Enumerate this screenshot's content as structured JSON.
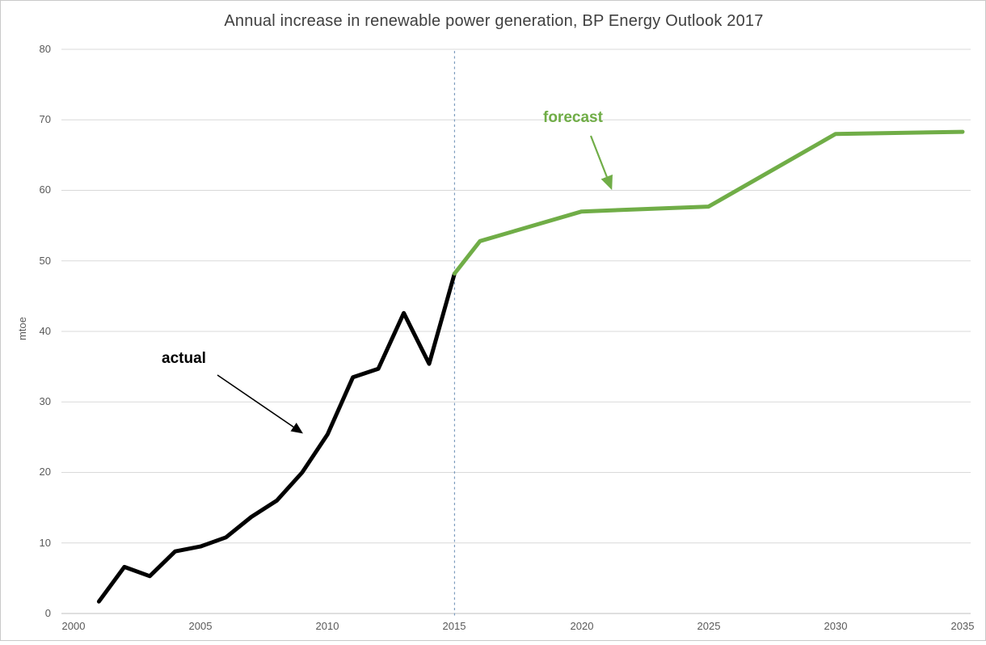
{
  "chart_data": {
    "type": "line",
    "title": "Annual increase in renewable power generation, BP Energy Outlook 2017",
    "xlabel": "",
    "ylabel": "mtoe",
    "xlim": [
      2000,
      2035
    ],
    "ylim": [
      0,
      80
    ],
    "x_tick_step": 5,
    "y_tick_step": 10,
    "x_tick_labels": [
      "2000",
      "2005",
      "2010",
      "2015",
      "2020",
      "2025",
      "2030",
      "2035"
    ],
    "y_tick_labels": [
      "0",
      "10",
      "20",
      "30",
      "40",
      "50",
      "60",
      "70",
      "80"
    ],
    "grid": "horizontal-only",
    "legend": "none",
    "gridline_color": "#D9D9D9",
    "axis_line_color": "#BFBFBF",
    "divider": {
      "x": 2015,
      "style": "dashed",
      "color": "#7E9DBE"
    },
    "series": [
      {
        "name": "actual",
        "color": "#000000",
        "x": [
          2001,
          2002,
          2003,
          2004,
          2005,
          2006,
          2007,
          2008,
          2009,
          2010,
          2011,
          2012,
          2013,
          2014,
          2015
        ],
        "values": [
          1.7,
          6.6,
          5.3,
          8.8,
          9.5,
          10.8,
          13.7,
          16.0,
          20.0,
          25.4,
          33.5,
          34.7,
          42.6,
          35.4,
          48.2
        ]
      },
      {
        "name": "forecast",
        "color": "#70AD47",
        "x": [
          2015,
          2016,
          2020,
          2025,
          2030,
          2035
        ],
        "values": [
          48.2,
          52.8,
          57.0,
          57.7,
          68.0,
          68.3
        ]
      }
    ],
    "annotations": [
      {
        "text": "actual",
        "color": "#000000",
        "points_to": "actual series near 2009-2010"
      },
      {
        "text": "forecast",
        "color": "#70AD47",
        "points_to": "forecast series near 2021"
      }
    ]
  }
}
